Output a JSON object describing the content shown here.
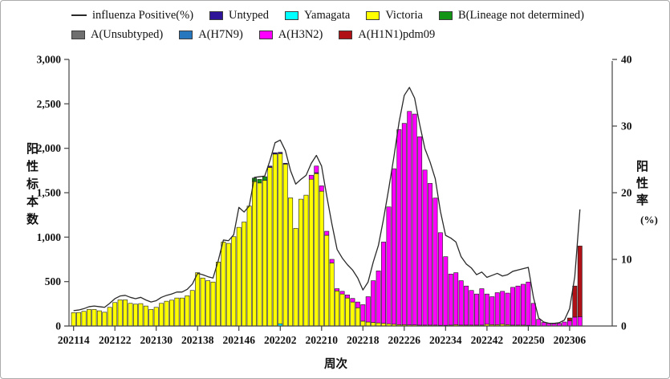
{
  "figure": {
    "background": "#ffffff",
    "border_color": "#ababab"
  },
  "chart_data": {
    "type": "bar",
    "subtype": "stacked-bar-with-line",
    "x_axis": {
      "title": "周次",
      "tick_labels": [
        "202114",
        "202122",
        "202130",
        "202138",
        "202146",
        "202202",
        "202210",
        "202218",
        "202226",
        "202234",
        "202242",
        "202250",
        "202306"
      ]
    },
    "y_left": {
      "title": "阳性标本数",
      "max": 3000,
      "tick_values": [
        0,
        500,
        1000,
        1500,
        2000,
        2500,
        3000
      ],
      "tick_labels": [
        "0",
        "500",
        "1,000",
        "1,500",
        "2,000",
        "2,500",
        "3,000"
      ]
    },
    "y_right": {
      "title": "阳性率",
      "unit": "(%)",
      "max": 40,
      "tick_values": [
        0,
        10,
        20,
        30,
        40
      ],
      "tick_labels": [
        "0",
        "10",
        "20",
        "30",
        "40"
      ]
    },
    "week_ranges": [
      [
        2021,
        14,
        52
      ],
      [
        2022,
        1,
        52
      ],
      [
        2023,
        1,
        8
      ]
    ],
    "stack_order": [
      "yamagata",
      "victoria",
      "b_lineage_nd",
      "untyped",
      "h3n2",
      "h1n1pdm09"
    ],
    "bar_stroke": "#1a1a1a",
    "series": [
      {
        "id": "untyped",
        "name": "Untyped",
        "color": "#2e1398",
        "values_by_week": {
          "202152": 15,
          "202201": 15,
          "202202": 15,
          "202203": 10,
          "202209": 10
        }
      },
      {
        "id": "yamagata",
        "name": "Yamagata",
        "color": "#00ffff",
        "values_by_week": {
          "202202": 25
        }
      },
      {
        "id": "victoria",
        "name": "Victoria",
        "color": "#ffff00",
        "values": [
          150,
          152,
          165,
          186,
          186,
          171,
          155,
          210,
          264,
          294,
          294,
          255,
          246,
          252,
          225,
          186,
          210,
          255,
          279,
          291,
          315,
          315,
          340,
          400,
          600,
          540,
          510,
          495,
          720,
          945,
          930,
          1005,
          1110,
          1170,
          1350,
          1625,
          1610,
          1640,
          1785,
          1935,
          1915,
          1822,
          1442,
          1099,
          1427,
          1472,
          1652,
          1715,
          1517,
          1021,
          710,
          395,
          360,
          315,
          270,
          205,
          55,
          45,
          40,
          35,
          30,
          25,
          20,
          15,
          15,
          12,
          12,
          10,
          10,
          10,
          10,
          8,
          8,
          10,
          15,
          10,
          10,
          10,
          10,
          10,
          20,
          15,
          15,
          20,
          15,
          10,
          10,
          10,
          8,
          5,
          0,
          0,
          0,
          0,
          0,
          0,
          0,
          0,
          0
        ]
      },
      {
        "id": "b_lineage_nd",
        "name": "B(Lineage not determined)",
        "color": "#149414",
        "values_by_week": {
          "202149": 40,
          "202150": 40,
          "202151": 40
        }
      },
      {
        "id": "unsubtyped",
        "name": "A(Unsubtyped)",
        "color": "#6f6f6f",
        "values_by_week": {}
      },
      {
        "id": "h7n9",
        "name": "A(H7N9)",
        "color": "#2677be",
        "values_by_week": {}
      },
      {
        "id": "h3n2",
        "name": "A(H3N2)",
        "color": "#ff00ff",
        "values": [
          0,
          0,
          0,
          0,
          0,
          0,
          0,
          0,
          0,
          0,
          0,
          0,
          0,
          0,
          0,
          0,
          0,
          0,
          0,
          0,
          0,
          0,
          0,
          0,
          0,
          0,
          0,
          0,
          0,
          0,
          0,
          0,
          0,
          0,
          0,
          0,
          0,
          0,
          0,
          0,
          0,
          0,
          0,
          0,
          0,
          0,
          45,
          75,
          60,
          45,
          40,
          25,
          30,
          35,
          40,
          65,
          185,
          285,
          470,
          585,
          915,
          1315,
          1750,
          2195,
          2265,
          2403,
          2373,
          2120,
          1745,
          1595,
          1430,
          1042,
          772,
          575,
          585,
          500,
          440,
          390,
          350,
          410,
          340,
          315,
          360,
          370,
          355,
          425,
          440,
          460,
          487,
          250,
          75,
          40,
          30,
          25,
          30,
          45,
          60,
          100,
          105
        ]
      },
      {
        "id": "h1n1pdm09",
        "name": "A(H1N1)pdm09",
        "color": "#b01116",
        "values": [
          0,
          0,
          0,
          0,
          0,
          0,
          0,
          0,
          0,
          0,
          0,
          0,
          0,
          0,
          0,
          0,
          0,
          0,
          0,
          0,
          0,
          0,
          0,
          0,
          0,
          0,
          0,
          0,
          0,
          0,
          0,
          0,
          0,
          0,
          0,
          0,
          0,
          0,
          0,
          0,
          0,
          0,
          0,
          0,
          0,
          0,
          0,
          0,
          0,
          0,
          0,
          0,
          0,
          0,
          0,
          0,
          0,
          0,
          0,
          0,
          0,
          0,
          0,
          0,
          0,
          0,
          0,
          0,
          0,
          0,
          0,
          0,
          0,
          0,
          0,
          0,
          0,
          0,
          0,
          0,
          0,
          0,
          0,
          0,
          0,
          0,
          0,
          0,
          0,
          0,
          0,
          0,
          0,
          0,
          0,
          0,
          30,
          350,
          795
        ]
      }
    ],
    "line": {
      "name": "influenza Positive(%)",
      "color": "#2a2a2a",
      "values": [
        2.3,
        2.4,
        2.6,
        2.9,
        3.0,
        2.9,
        2.8,
        3.4,
        4.1,
        4.5,
        4.6,
        4.3,
        4.1,
        4.3,
        3.9,
        3.6,
        3.8,
        4.3,
        4.6,
        4.8,
        5.1,
        5.1,
        5.5,
        6.3,
        7.9,
        7.7,
        7.4,
        7.2,
        9.8,
        12.9,
        12.8,
        13.7,
        17.8,
        17.1,
        18.0,
        22.3,
        22.4,
        22.5,
        24.8,
        27.5,
        27.9,
        26.3,
        23.3,
        21.3,
        22.0,
        22.6,
        24.4,
        25.6,
        24.0,
        19.5,
        15.3,
        11.5,
        10.2,
        9.2,
        8.4,
        7.2,
        5.4,
        6.6,
        9.6,
        12.1,
        16.1,
        20.6,
        25.4,
        30.6,
        34.6,
        35.8,
        34.2,
        30.2,
        26.6,
        24.6,
        22.1,
        17.2,
        13.6,
        13.2,
        12.6,
        10.4,
        9.3,
        8.7,
        7.7,
        8.1,
        7.3,
        7.6,
        7.9,
        7.5,
        7.7,
        8.2,
        8.4,
        8.6,
        8.8,
        4.3,
        1.2,
        0.6,
        0.4,
        0.4,
        0.5,
        0.9,
        2.6,
        7.4,
        17.5
      ]
    },
    "legend_rows": [
      [
        {
          "id": "line",
          "label": "influenza Positive(%)",
          "swatch": "line",
          "color": "#2a2a2a"
        },
        {
          "id": "untyped",
          "label": "Untyped",
          "swatch": "box",
          "color": "#2e1398"
        },
        {
          "id": "yamagata",
          "label": "Yamagata",
          "swatch": "box",
          "color": "#00ffff"
        },
        {
          "id": "victoria",
          "label": "Victoria",
          "swatch": "box",
          "color": "#ffff00"
        },
        {
          "id": "b_lineage_nd",
          "label": "B(Lineage not determined)",
          "swatch": "box",
          "color": "#149414"
        }
      ],
      [
        {
          "id": "unsubtyped",
          "label": "A(Unsubtyped)",
          "swatch": "box",
          "color": "#6f6f6f"
        },
        {
          "id": "h7n9",
          "label": "A(H7N9)",
          "swatch": "box",
          "color": "#2677be"
        },
        {
          "id": "h3n2",
          "label": "A(H3N2)",
          "swatch": "box",
          "color": "#ff00ff"
        },
        {
          "id": "h1n1pdm09",
          "label": "A(H1N1)pdm09",
          "swatch": "box",
          "color": "#b01116"
        }
      ]
    ]
  }
}
